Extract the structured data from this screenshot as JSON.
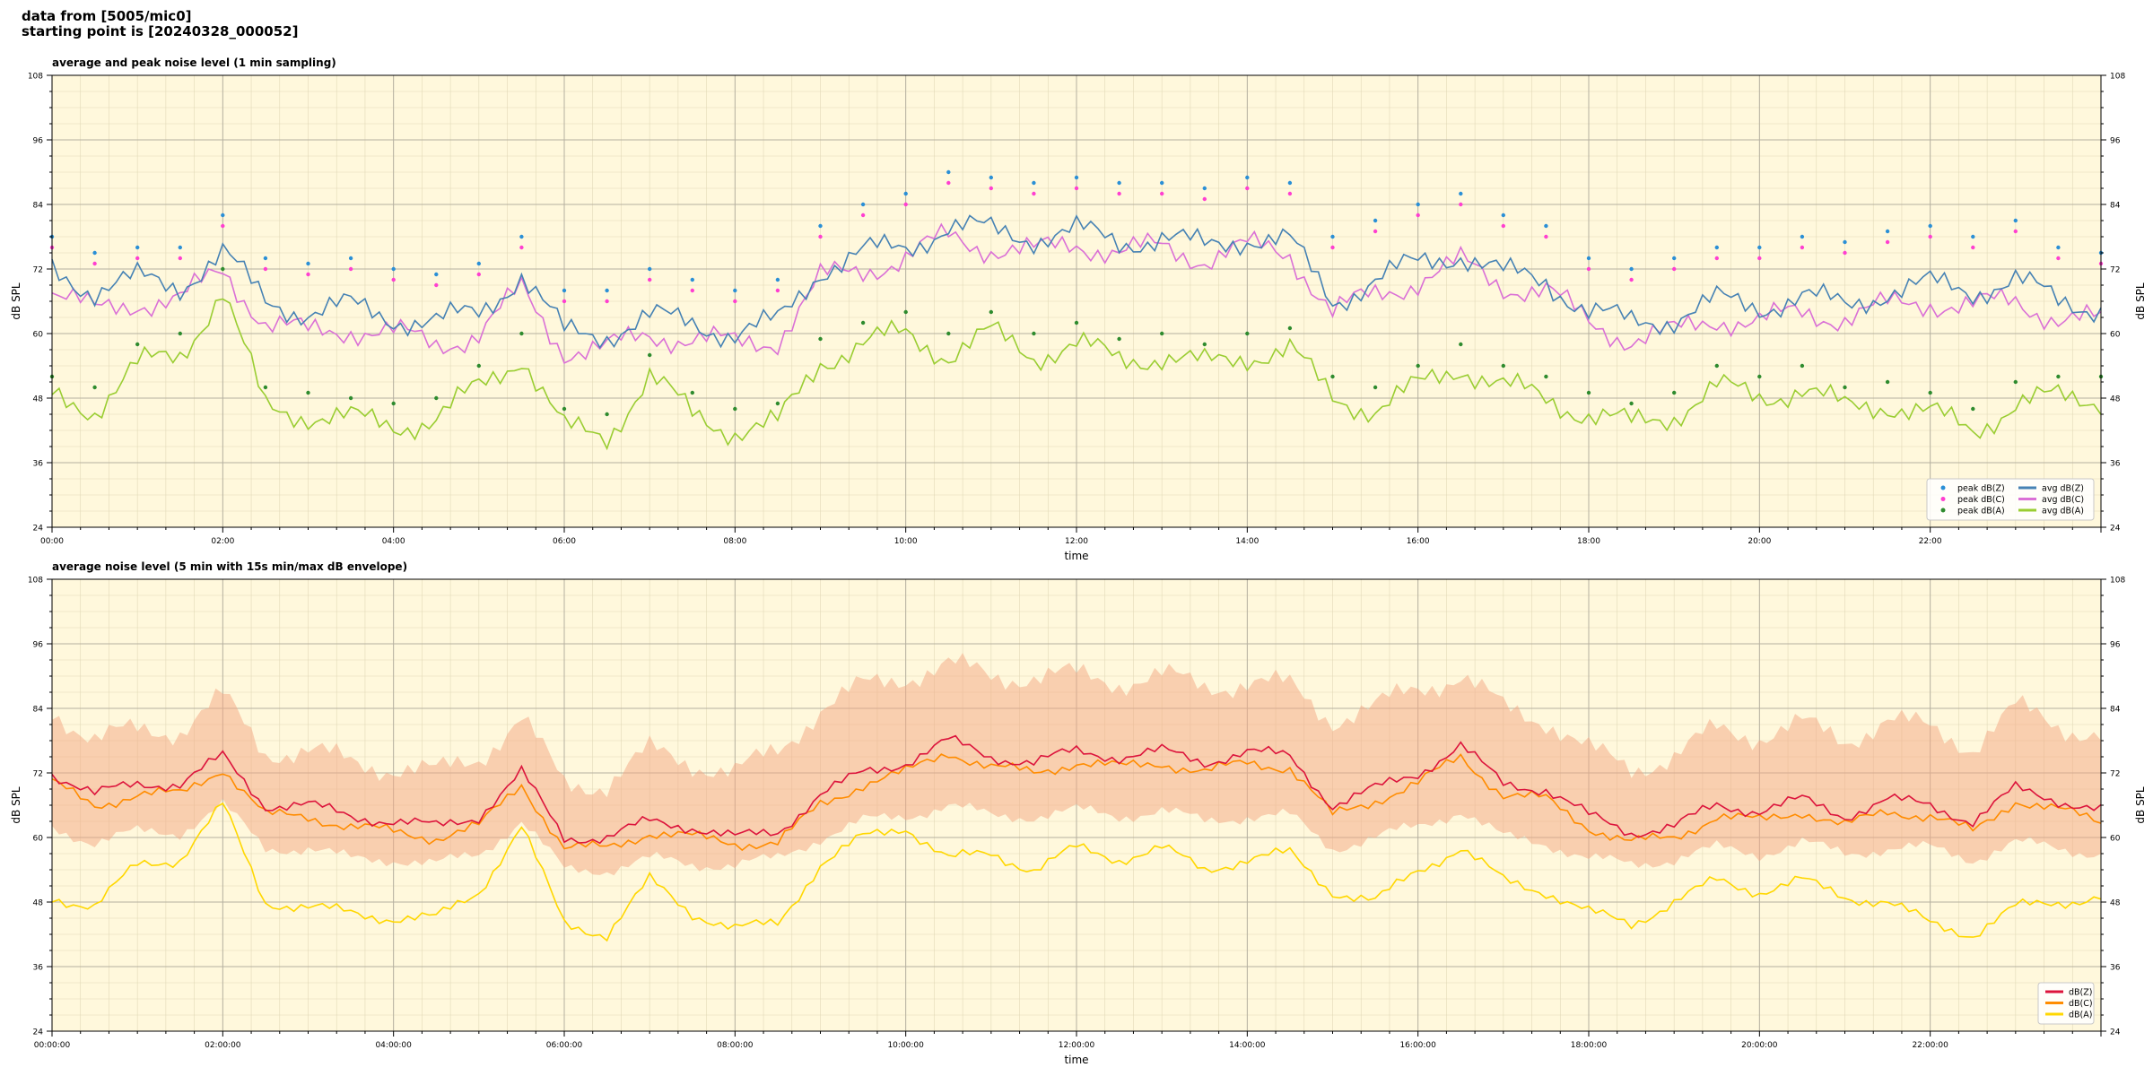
{
  "header": {
    "line1": "data from [5005/mic0]",
    "line2": "starting point is [20240328_000052]"
  },
  "colors": {
    "plot_bg": "#fff8dc",
    "peak_z": "#2a8fd6",
    "peak_c": "#ff3fd0",
    "peak_a": "#2e8b2e",
    "avg_z": "#4682b4",
    "avg_c": "#da70d6",
    "avg_a": "#9acd32",
    "dbz": "#dc143c",
    "dbc": "#ff8c00",
    "dba": "#ffd700",
    "envelope": "#f4a582"
  },
  "chart_data": [
    {
      "type": "line",
      "title": "average and peak noise level (1 min sampling)",
      "xlabel": "time",
      "ylabel": "dB SPL",
      "ylabel_right": "dB SPL",
      "xlim": [
        0,
        24
      ],
      "ylim": [
        24,
        108
      ],
      "yticks": [
        24,
        36,
        48,
        60,
        72,
        84,
        96,
        108
      ],
      "xtick_labels": [
        "00:00",
        "02:00",
        "04:00",
        "06:00",
        "08:00",
        "10:00",
        "12:00",
        "14:00",
        "16:00",
        "18:00",
        "20:00",
        "22:00"
      ],
      "grid": true,
      "legend_position": "bottom-right",
      "legend": [
        {
          "label": "peak dB(Z)",
          "kind": "dot",
          "color": "#2a8fd6"
        },
        {
          "label": "avg dB(Z)",
          "kind": "line",
          "color": "#4682b4"
        },
        {
          "label": "peak dB(C)",
          "kind": "dot",
          "color": "#ff3fd0"
        },
        {
          "label": "avg dB(C)",
          "kind": "line",
          "color": "#da70d6"
        },
        {
          "label": "peak dB(A)",
          "kind": "dot",
          "color": "#2e8b2e"
        },
        {
          "label": "avg dB(A)",
          "kind": "line",
          "color": "#9acd32"
        }
      ],
      "x": [
        0,
        0.5,
        1,
        1.5,
        2,
        2.5,
        3,
        3.5,
        4,
        4.5,
        5,
        5.5,
        6,
        6.5,
        7,
        7.5,
        8,
        8.5,
        9,
        9.5,
        10,
        10.5,
        11,
        11.5,
        12,
        12.5,
        13,
        13.5,
        14,
        14.5,
        15,
        15.5,
        16,
        16.5,
        17,
        17.5,
        18,
        18.5,
        19,
        19.5,
        20,
        20.5,
        21,
        21.5,
        22,
        22.5,
        23,
        23.5,
        24
      ],
      "series": [
        {
          "name": "avg dB(Z)",
          "values": [
            72,
            68,
            70,
            69,
            75,
            66,
            64,
            65,
            63,
            62,
            64,
            71,
            60,
            60,
            63,
            62,
            60,
            62,
            72,
            75,
            76,
            80,
            79,
            78,
            79,
            77,
            78,
            76,
            78,
            77,
            66,
            70,
            73,
            75,
            71,
            70,
            64,
            62,
            63,
            66,
            65,
            67,
            65,
            68,
            69,
            68,
            70,
            66,
            65
          ]
        },
        {
          "name": "avg dB(C)",
          "values": [
            68,
            64,
            66,
            66,
            72,
            62,
            60,
            61,
            60,
            58,
            60,
            68,
            57,
            57,
            60,
            59,
            58,
            59,
            70,
            72,
            74,
            78,
            76,
            75,
            77,
            75,
            76,
            74,
            76,
            75,
            64,
            67,
            70,
            73,
            69,
            68,
            62,
            59,
            60,
            63,
            62,
            64,
            63,
            65,
            66,
            65,
            66,
            63,
            62
          ]
        },
        {
          "name": "avg dB(A)",
          "values": [
            48,
            46,
            54,
            56,
            68,
            46,
            45,
            44,
            43,
            44,
            50,
            56,
            42,
            41,
            52,
            45,
            42,
            43,
            55,
            58,
            60,
            56,
            60,
            56,
            58,
            55,
            56,
            54,
            56,
            57,
            48,
            46,
            50,
            54,
            50,
            48,
            45,
            43,
            45,
            50,
            48,
            50,
            46,
            47,
            45,
            42,
            47,
            48,
            48
          ]
        }
      ],
      "peak_levels": [
        {
          "name": "peak dB(Z)",
          "values": [
            78,
            75,
            76,
            76,
            82,
            74,
            73,
            74,
            72,
            71,
            73,
            78,
            68,
            68,
            72,
            70,
            68,
            70,
            80,
            84,
            86,
            90,
            89,
            88,
            89,
            88,
            88,
            87,
            89,
            88,
            78,
            81,
            84,
            86,
            82,
            80,
            74,
            72,
            74,
            76,
            76,
            78,
            77,
            79,
            80,
            78,
            81,
            76,
            75
          ]
        },
        {
          "name": "peak dB(C)",
          "values": [
            76,
            73,
            74,
            74,
            80,
            72,
            71,
            72,
            70,
            69,
            71,
            76,
            66,
            66,
            70,
            68,
            66,
            68,
            78,
            82,
            84,
            88,
            87,
            86,
            87,
            86,
            86,
            85,
            87,
            86,
            76,
            79,
            82,
            84,
            80,
            78,
            72,
            70,
            72,
            74,
            74,
            76,
            75,
            77,
            78,
            76,
            79,
            74,
            73
          ]
        },
        {
          "name": "peak dB(A)",
          "values": [
            52,
            50,
            58,
            60,
            72,
            50,
            49,
            48,
            47,
            48,
            54,
            60,
            46,
            45,
            56,
            49,
            46,
            47,
            59,
            62,
            64,
            60,
            64,
            60,
            62,
            59,
            60,
            58,
            60,
            61,
            52,
            50,
            54,
            58,
            54,
            52,
            49,
            47,
            49,
            54,
            52,
            54,
            50,
            51,
            49,
            46,
            51,
            52,
            52
          ]
        }
      ]
    },
    {
      "type": "line",
      "title": "average noise level (5 min with 15s min/max dB envelope)",
      "xlabel": "time",
      "ylabel": "dB SPL",
      "ylabel_right": "dB SPL",
      "xlim": [
        0,
        24
      ],
      "ylim": [
        24,
        108
      ],
      "yticks": [
        24,
        36,
        48,
        60,
        72,
        84,
        96,
        108
      ],
      "xtick_labels": [
        "00:00:00",
        "02:00:00",
        "04:00:00",
        "06:00:00",
        "08:00:00",
        "10:00:00",
        "12:00:00",
        "14:00:00",
        "16:00:00",
        "18:00:00",
        "20:00:00",
        "22:00:00"
      ],
      "grid": true,
      "legend_position": "bottom-right",
      "legend": [
        {
          "label": "dB(Z)",
          "kind": "line",
          "color": "#dc143c"
        },
        {
          "label": "dB(C)",
          "kind": "line",
          "color": "#ff8c00"
        },
        {
          "label": "dB(A)",
          "kind": "line",
          "color": "#ffd700"
        }
      ],
      "x": [
        0,
        0.5,
        1,
        1.5,
        2,
        2.5,
        3,
        3.5,
        4,
        4.5,
        5,
        5.5,
        6,
        6.5,
        7,
        7.5,
        8,
        8.5,
        9,
        9.5,
        10,
        10.5,
        11,
        11.5,
        12,
        12.5,
        13,
        13.5,
        14,
        14.5,
        15,
        15.5,
        16,
        16.5,
        17,
        17.5,
        18,
        18.5,
        19,
        19.5,
        20,
        20.5,
        21,
        21.5,
        22,
        22.5,
        23,
        23.5,
        24
      ],
      "series": [
        {
          "name": "dB(Z)",
          "values": [
            72,
            68,
            70,
            70,
            75,
            66,
            66,
            64,
            63,
            62,
            64,
            72,
            60,
            60,
            63,
            62,
            60,
            61,
            68,
            72,
            74,
            78,
            75,
            74,
            76,
            75,
            76,
            74,
            76,
            75,
            66,
            69,
            72,
            77,
            70,
            69,
            64,
            61,
            62,
            66,
            65,
            67,
            64,
            67,
            66,
            63,
            69,
            67,
            65
          ]
        },
        {
          "name": "dB(C)",
          "values": [
            70,
            66,
            68,
            68,
            73,
            64,
            64,
            62,
            61,
            60,
            62,
            70,
            58,
            58,
            61,
            60,
            59,
            59,
            66,
            70,
            72,
            76,
            73,
            72,
            74,
            73,
            74,
            72,
            74,
            73,
            64,
            67,
            70,
            75,
            68,
            67,
            62,
            59,
            60,
            64,
            63,
            65,
            62,
            65,
            64,
            61,
            67,
            65,
            63
          ]
        },
        {
          "name": "dB(A)",
          "values": [
            49,
            47,
            55,
            56,
            66,
            48,
            47,
            46,
            45,
            45,
            50,
            62,
            44,
            42,
            52,
            46,
            43,
            44,
            55,
            60,
            62,
            56,
            57,
            54,
            58,
            56,
            58,
            54,
            56,
            57,
            50,
            48,
            54,
            58,
            52,
            50,
            46,
            44,
            48,
            52,
            50,
            52,
            49,
            48,
            44,
            42,
            47,
            48,
            49
          ]
        }
      ],
      "envelope": {
        "name": "15s min/max dB envelope",
        "min": [
          62,
          59,
          61,
          61,
          66,
          58,
          58,
          56,
          56,
          55,
          57,
          63,
          54,
          54,
          56,
          55,
          55,
          56,
          60,
          63,
          64,
          66,
          64,
          64,
          65,
          64,
          65,
          63,
          64,
          64,
          58,
          60,
          62,
          65,
          60,
          59,
          56,
          55,
          56,
          58,
          57,
          59,
          57,
          58,
          58,
          56,
          59,
          58,
          57
        ],
        "max": [
          84,
          78,
          80,
          80,
          86,
          76,
          76,
          74,
          73,
          72,
          75,
          82,
          70,
          70,
          76,
          74,
          72,
          76,
          84,
          88,
          90,
          92,
          90,
          90,
          90,
          89,
          90,
          88,
          89,
          88,
          82,
          84,
          88,
          90,
          84,
          82,
          76,
          73,
          75,
          80,
          79,
          81,
          78,
          82,
          80,
          77,
          84,
          81,
          79
        ]
      }
    }
  ]
}
